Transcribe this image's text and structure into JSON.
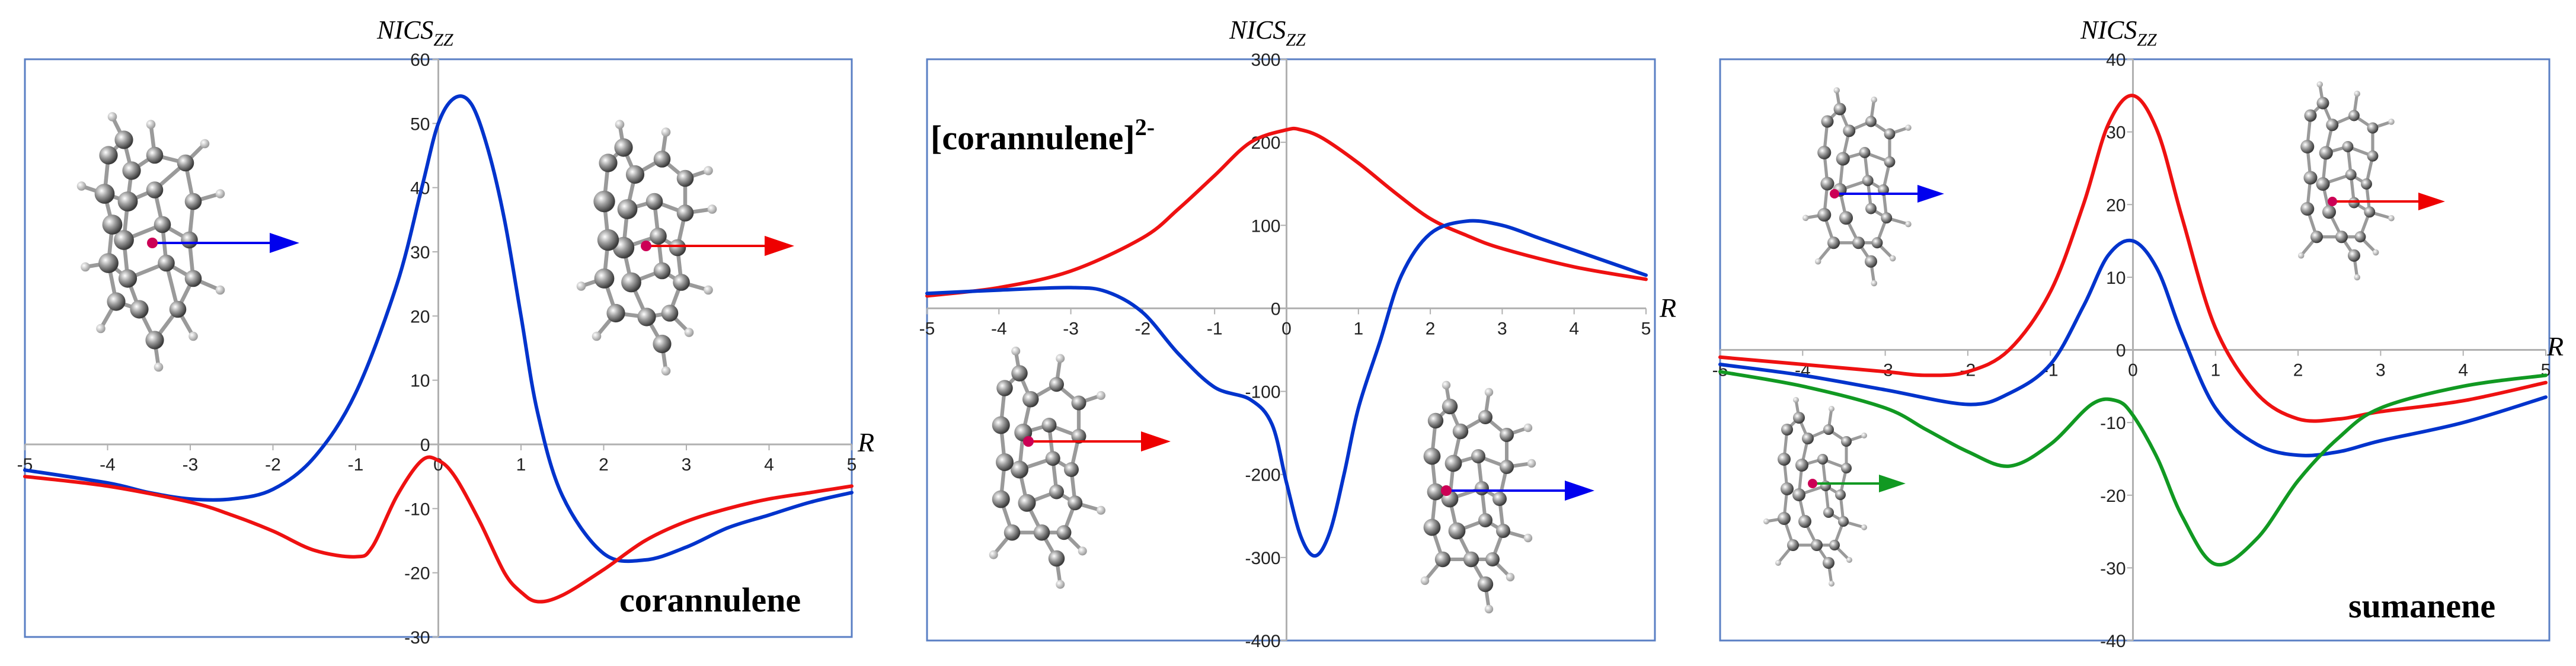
{
  "chart_data": [
    {
      "type": "line",
      "ylabel": "NICS",
      "ylabel_sub": "ZZ",
      "xlabel": "R",
      "annotation": "corannulene",
      "xlim": [
        -5,
        5
      ],
      "ylim": [
        -30,
        60
      ],
      "x_ticks": [
        -5,
        -4,
        -3,
        -2,
        -1,
        0,
        1,
        2,
        3,
        4,
        5
      ],
      "x_tick_labels": [
        "-5",
        "-4",
        "-3",
        "-2",
        "-1",
        "0",
        "1",
        "2",
        "3",
        "4",
        "5"
      ],
      "y_ticks": [
        -30,
        -20,
        -10,
        0,
        10,
        20,
        30,
        40,
        50,
        60
      ],
      "y_tick_labels": [
        "-30",
        "-20",
        "-10",
        "0",
        "10",
        "20",
        "30",
        "40",
        "50",
        "60"
      ],
      "series": [
        {
          "color": "#0033cc",
          "x": [
            -5,
            -4,
            -3.5,
            -3,
            -2.5,
            -2,
            -1.5,
            -1,
            -0.5,
            -0.2,
            0,
            0.2,
            0.4,
            0.6,
            0.8,
            1,
            1.2,
            1.5,
            2,
            2.5,
            3,
            3.5,
            4,
            4.5,
            5
          ],
          "y": [
            -4,
            -6,
            -7.5,
            -8.5,
            -8.5,
            -7,
            -2,
            8,
            25,
            40,
            50,
            54,
            53,
            46,
            35,
            20,
            5,
            -8,
            -17,
            -18,
            -16,
            -13,
            -11,
            -9,
            -7.5
          ]
        },
        {
          "color": "#ee1111",
          "x": [
            -5,
            -4,
            -3,
            -2.5,
            -2,
            -1.5,
            -1,
            -0.8,
            -0.5,
            -0.2,
            0,
            0.2,
            0.5,
            0.8,
            1,
            1.2,
            1.5,
            2,
            2.5,
            3,
            3.5,
            4,
            4.5,
            5
          ],
          "y": [
            -5,
            -6.5,
            -9,
            -11,
            -13.5,
            -16.5,
            -17.5,
            -16,
            -8,
            -2.5,
            -2.5,
            -5,
            -12,
            -20,
            -23,
            -24.5,
            -23.5,
            -19.5,
            -15,
            -12,
            -10,
            -8.5,
            -7.5,
            -6.5
          ]
        }
      ]
    },
    {
      "type": "line",
      "ylabel": "NICS",
      "ylabel_sub": "ZZ",
      "xlabel": "R",
      "annotation": "[corannulene]",
      "annotation_sup": "2-",
      "xlim": [
        -5,
        5
      ],
      "ylim": [
        -400,
        300
      ],
      "x_ticks": [
        -5,
        -4,
        -3,
        -2,
        -1,
        0,
        1,
        2,
        3,
        4,
        5
      ],
      "x_tick_labels": [
        "-5",
        "-4",
        "-3",
        "-2",
        "-1",
        "0",
        "1",
        "2",
        "3",
        "4",
        "5"
      ],
      "y_ticks": [
        -400,
        -300,
        -200,
        -100,
        0,
        100,
        200,
        300
      ],
      "y_tick_labels": [
        "-400",
        "-300",
        "-200",
        "-100",
        "0",
        "100",
        "200",
        "300"
      ],
      "series": [
        {
          "color": "#ee1111",
          "x": [
            -5,
            -4,
            -3,
            -2,
            -1.5,
            -1,
            -0.5,
            0,
            0.2,
            0.5,
            1,
            1.5,
            2,
            2.5,
            3,
            4,
            5
          ],
          "y": [
            15,
            25,
            45,
            85,
            120,
            160,
            200,
            215,
            215,
            205,
            175,
            140,
            108,
            88,
            72,
            50,
            35
          ]
        },
        {
          "color": "#0033cc",
          "x": [
            -5,
            -4,
            -3,
            -2.5,
            -2,
            -1.5,
            -1,
            -0.5,
            -0.2,
            0,
            0.2,
            0.4,
            0.6,
            0.8,
            1,
            1.3,
            1.6,
            2,
            2.5,
            3,
            3.5,
            4,
            5
          ],
          "y": [
            18,
            22,
            25,
            20,
            -5,
            -55,
            -95,
            -110,
            -140,
            -210,
            -275,
            -298,
            -270,
            -200,
            -120,
            -40,
            40,
            90,
            105,
            100,
            85,
            70,
            40
          ]
        }
      ]
    },
    {
      "type": "line",
      "ylabel": "NICS",
      "ylabel_sub": "ZZ",
      "xlabel": "R",
      "annotation": "sumanene",
      "xlim": [
        -5,
        5
      ],
      "ylim": [
        -40,
        40
      ],
      "x_ticks": [
        -5,
        -4,
        -3,
        -2,
        -1,
        0,
        1,
        2,
        3,
        4,
        5
      ],
      "x_tick_labels": [
        "-5",
        "-4",
        "-3",
        "-2",
        "-1",
        "0",
        "1",
        "2",
        "3",
        "4",
        "5"
      ],
      "y_ticks": [
        -40,
        -30,
        -20,
        -10,
        0,
        10,
        20,
        30,
        40
      ],
      "y_tick_labels": [
        "-40",
        "-30",
        "-20",
        "-10",
        "0",
        "10",
        "20",
        "30",
        "40"
      ],
      "series": [
        {
          "color": "#ee1111",
          "x": [
            -5,
            -4,
            -3,
            -2.5,
            -2,
            -1.5,
            -1,
            -0.6,
            -0.3,
            0,
            0.3,
            0.6,
            1,
            1.5,
            2,
            2.5,
            3,
            4,
            5
          ],
          "y": [
            -1,
            -2,
            -3,
            -3.5,
            -3,
            0,
            8,
            20,
            31,
            35,
            30,
            18,
            3,
            -6,
            -9.5,
            -9.5,
            -8.5,
            -7,
            -4.5
          ]
        },
        {
          "color": "#0033cc",
          "x": [
            -5,
            -4,
            -3,
            -2,
            -1.5,
            -1,
            -0.6,
            -0.3,
            0,
            0.3,
            0.6,
            1,
            1.5,
            2,
            2.5,
            3,
            4,
            5
          ],
          "y": [
            -2,
            -3.5,
            -5.5,
            -7.5,
            -6,
            -2,
            6,
            13,
            15,
            11,
            2,
            -8,
            -13,
            -14.5,
            -14,
            -12.5,
            -10,
            -6.5
          ]
        },
        {
          "color": "#119922",
          "x": [
            -5,
            -4,
            -3,
            -2.5,
            -2,
            -1.5,
            -1,
            -0.5,
            -0.2,
            0,
            0.3,
            0.6,
            1,
            1.5,
            2,
            2.5,
            3,
            4,
            5
          ],
          "y": [
            -3,
            -5,
            -8,
            -11,
            -14,
            -16,
            -13,
            -7.5,
            -7,
            -9,
            -15,
            -23,
            -29.5,
            -26,
            -18,
            -12,
            -8,
            -5,
            -3.5
          ]
        }
      ]
    }
  ]
}
